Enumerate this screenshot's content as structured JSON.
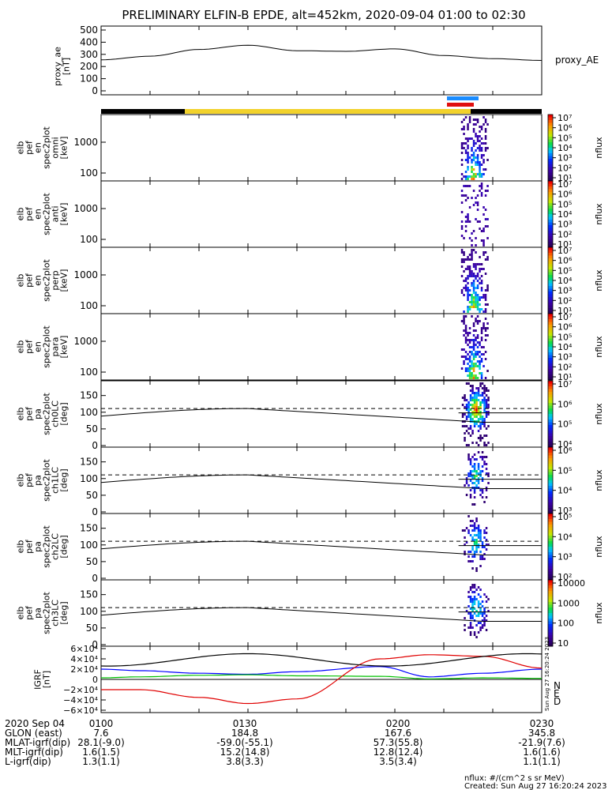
{
  "title": "PRELIMINARY ELFIN-B EPDE, alt=452km, 2020-09-04 01:00 to 02:30",
  "colors": {
    "status_black": "#000000",
    "status_yellow": "#f2d22b",
    "blue_bar": "#1a8cff",
    "red_bar": "#e01010",
    "grf_N": "#0000ff",
    "grf_E": "#00c000",
    "grf_D": "#e00000"
  },
  "ae_panel": {
    "ylabel_lines": [
      "proxy_ae",
      "[nT]"
    ],
    "legend": "proxy_AE",
    "yticks": [
      "500",
      "400",
      "300",
      "200",
      "100",
      "0"
    ]
  },
  "spec_panels": [
    {
      "ylabel_lines": [
        "elb",
        "pef",
        "en",
        "spec2plot",
        "omni",
        "[keV]"
      ],
      "yticks": [
        "1000",
        "100"
      ],
      "cbar_label": "nflux",
      "cbar_ticks": [
        "10⁷",
        "10⁶",
        "10⁵",
        "10⁴",
        "10³",
        "10²",
        "10¹"
      ]
    },
    {
      "ylabel_lines": [
        "elb",
        "pef",
        "en",
        "spec2plot",
        "anti",
        "[keV]"
      ],
      "yticks": [
        "1000",
        "100"
      ],
      "cbar_label": "nflux",
      "cbar_ticks": [
        "10⁷",
        "10⁶",
        "10⁵",
        "10⁴",
        "10³",
        "10²",
        "10¹"
      ]
    },
    {
      "ylabel_lines": [
        "elb",
        "pef",
        "en",
        "spec2plot",
        "perp",
        "[keV]"
      ],
      "yticks": [
        "1000",
        "100"
      ],
      "cbar_label": "nflux",
      "cbar_ticks": [
        "10⁷",
        "10⁶",
        "10⁵",
        "10⁴",
        "10³",
        "10²",
        "10¹"
      ]
    },
    {
      "ylabel_lines": [
        "elb",
        "pef",
        "en",
        "spec2plot",
        "para",
        "[keV]"
      ],
      "yticks": [
        "1000",
        "100"
      ],
      "cbar_label": "nflux",
      "cbar_ticks": [
        "10⁷",
        "10⁶",
        "10⁵",
        "10⁴",
        "10³",
        "10²",
        "10¹"
      ]
    }
  ],
  "pa_panels": [
    {
      "ylabel_lines": [
        "elb",
        "pef",
        "pa",
        "spec2plot",
        "ch0LC",
        "[deg]"
      ],
      "yticks": [
        "150",
        "100",
        "50",
        "0"
      ],
      "cbar_label": "nflux",
      "cbar_ticks": [
        "10⁷",
        "10⁶",
        "10⁵",
        "10⁴"
      ]
    },
    {
      "ylabel_lines": [
        "elb",
        "pef",
        "pa",
        "spec2plot",
        "ch1LC",
        "[deg]"
      ],
      "yticks": [
        "150",
        "100",
        "50",
        "0"
      ],
      "cbar_label": "nflux",
      "cbar_ticks": [
        "10⁶",
        "10⁵",
        "10⁴",
        "10³"
      ]
    },
    {
      "ylabel_lines": [
        "elb",
        "pef",
        "pa",
        "spec2plot",
        "ch2LC",
        "[deg]"
      ],
      "yticks": [
        "150",
        "100",
        "50",
        "0"
      ],
      "cbar_label": "nflux",
      "cbar_ticks": [
        "10⁵",
        "10⁴",
        "10³",
        "10²"
      ]
    },
    {
      "ylabel_lines": [
        "elb",
        "pef",
        "pa",
        "spec2plot",
        "ch3LC",
        "[deg]"
      ],
      "yticks": [
        "150",
        "100",
        "50",
        "0"
      ],
      "cbar_label": "nflux",
      "cbar_ticks": [
        "10000",
        "1000",
        "100",
        "10"
      ]
    }
  ],
  "grf_panel": {
    "ylabel_lines": [
      "IGRF",
      "[nT]"
    ],
    "yticks": [
      "6×10⁴",
      "4×10⁴",
      "2×10⁴",
      "0",
      "−2×10⁴",
      "−4×10⁴",
      "−6×10⁴"
    ],
    "legend": [
      "N",
      "E",
      "D"
    ],
    "side_stamp": "Sun Aug 27 16:20:24 2023"
  },
  "bottom_table": {
    "rows": [
      {
        "label": "2020 Sep 04",
        "values": [
          "0100",
          "0130",
          "0200",
          "0230"
        ]
      },
      {
        "label": "GLON (east)",
        "values": [
          "7.6",
          "184.8",
          "167.6",
          "345.8"
        ]
      },
      {
        "label": "MLAT-igrf(dip)",
        "values": [
          "28.1(-9.0)",
          "-59.0(-55.1)",
          "57.3(55.8)",
          "-21.9(7.6)"
        ]
      },
      {
        "label": "MLT-igrf(dip)",
        "values": [
          "1.6(1.5)",
          "15.2(14.8)",
          "12.8(12.4)",
          "1.6(1.6)"
        ]
      },
      {
        "label": "L-igrf(dip)",
        "values": [
          "1.3(1.1)",
          "3.8(3.3)",
          "3.5(3.4)",
          "1.1(1.1)"
        ]
      }
    ]
  },
  "footer": {
    "units": "nflux: #/(cm^2 s sr MeV)",
    "created": "Created: Sun Aug 27 16:20:24 2023"
  },
  "chart_data": [
    {
      "type": "line",
      "name": "proxy_ae",
      "title": "PRELIMINARY ELFIN-B EPDE, alt=452km, 2020-09-04 01:00 to 02:30",
      "ylabel": "proxy_ae [nT]",
      "ylim": [
        0,
        500
      ],
      "x_range": [
        "0100",
        "0230"
      ],
      "x_minutes": [
        0,
        10,
        20,
        30,
        40,
        50,
        60,
        70,
        80,
        90
      ],
      "values": [
        255,
        285,
        340,
        375,
        330,
        325,
        345,
        290,
        265,
        250
      ]
    },
    {
      "type": "heatmap",
      "name": "spectrograms",
      "panels": [
        "omni",
        "anti",
        "perp",
        "para",
        "ch0LC",
        "ch1LC",
        "ch2LC",
        "ch3LC"
      ],
      "activity_minutes": [
        74,
        78
      ],
      "note_visible": "nflux"
    },
    {
      "type": "line",
      "name": "loss cone",
      "ylim": [
        0,
        180
      ],
      "x_minutes": [
        0,
        30,
        78
      ],
      "values": [
        88,
        111,
        70
      ]
    },
    {
      "type": "line",
      "name": "IGRF",
      "ylim": [
        -60000,
        60000
      ],
      "x_minutes": [
        0,
        8,
        20,
        30,
        40,
        57,
        67,
        78,
        90
      ],
      "series": [
        {
          "name": "N",
          "values": [
            20000,
            17000,
            12000,
            10000,
            15000,
            25000,
            5000,
            12000,
            20000
          ]
        },
        {
          "name": "E",
          "values": [
            3000,
            5000,
            8000,
            9000,
            7000,
            6000,
            1000,
            3000,
            2000
          ]
        },
        {
          "name": "D",
          "values": [
            -20000,
            -20000,
            -35000,
            -47000,
            -38000,
            40000,
            48000,
            45000,
            22000
          ]
        }
      ]
    }
  ]
}
